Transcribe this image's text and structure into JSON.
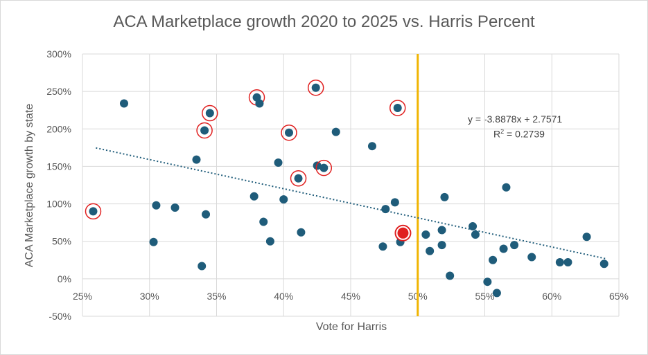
{
  "chart_data": {
    "type": "scatter",
    "title": "ACA Marketplace growth 2020 to 2025 vs. Harris Percent",
    "xlabel": "Vote for Harris",
    "ylabel": "ACA Marketplace growth by state",
    "xlim": [
      0.25,
      0.65
    ],
    "ylim": [
      -0.5,
      3.0
    ],
    "xticks": [
      "25%",
      "30%",
      "35%",
      "40%",
      "45%",
      "50%",
      "55%",
      "60%",
      "65%"
    ],
    "yticks": [
      "-50%",
      "0%",
      "50%",
      "100%",
      "150%",
      "200%",
      "250%",
      "300%"
    ],
    "grid": true,
    "point_color": "#1f5c7a",
    "circle_color": "#e02020",
    "vline": {
      "x": 0.5,
      "color": "#f0b400"
    },
    "trendline": {
      "slope": -3.8878,
      "intercept": 2.7571,
      "x_range": [
        0.26,
        0.64
      ],
      "color": "#1f5c7a",
      "equation": "y = -3.8878x + 2.7571",
      "r2_prefix": "R",
      "r2_suffix": " = 0.2739"
    },
    "points": [
      {
        "x": 0.258,
        "y": 0.9,
        "circled": true
      },
      {
        "x": 0.281,
        "y": 2.34
      },
      {
        "x": 0.303,
        "y": 0.49
      },
      {
        "x": 0.305,
        "y": 0.98
      },
      {
        "x": 0.319,
        "y": 0.95
      },
      {
        "x": 0.335,
        "y": 1.59
      },
      {
        "x": 0.339,
        "y": 0.17
      },
      {
        "x": 0.341,
        "y": 1.98,
        "circled": true
      },
      {
        "x": 0.342,
        "y": 0.86
      },
      {
        "x": 0.345,
        "y": 2.21,
        "circled": true
      },
      {
        "x": 0.378,
        "y": 1.1
      },
      {
        "x": 0.38,
        "y": 2.42,
        "circled": true
      },
      {
        "x": 0.382,
        "y": 2.34
      },
      {
        "x": 0.385,
        "y": 0.76
      },
      {
        "x": 0.39,
        "y": 0.5
      },
      {
        "x": 0.396,
        "y": 1.55
      },
      {
        "x": 0.4,
        "y": 1.06
      },
      {
        "x": 0.404,
        "y": 1.95,
        "circled": true
      },
      {
        "x": 0.411,
        "y": 1.34,
        "circled": true
      },
      {
        "x": 0.413,
        "y": 0.62
      },
      {
        "x": 0.424,
        "y": 2.55,
        "circled": true
      },
      {
        "x": 0.425,
        "y": 1.51
      },
      {
        "x": 0.43,
        "y": 1.48,
        "circled": true
      },
      {
        "x": 0.439,
        "y": 1.96
      },
      {
        "x": 0.466,
        "y": 1.77
      },
      {
        "x": 0.474,
        "y": 0.43
      },
      {
        "x": 0.476,
        "y": 0.93
      },
      {
        "x": 0.483,
        "y": 1.02
      },
      {
        "x": 0.485,
        "y": 2.28,
        "circled": true
      },
      {
        "x": 0.487,
        "y": 0.49
      },
      {
        "x": 0.489,
        "y": 0.61,
        "circled": true,
        "highlight": true
      },
      {
        "x": 0.506,
        "y": 0.59
      },
      {
        "x": 0.509,
        "y": 0.37
      },
      {
        "x": 0.518,
        "y": 0.45
      },
      {
        "x": 0.518,
        "y": 0.65
      },
      {
        "x": 0.52,
        "y": 1.09
      },
      {
        "x": 0.524,
        "y": 0.04
      },
      {
        "x": 0.541,
        "y": 0.7
      },
      {
        "x": 0.543,
        "y": 0.59
      },
      {
        "x": 0.552,
        "y": -0.04
      },
      {
        "x": 0.556,
        "y": 0.25
      },
      {
        "x": 0.559,
        "y": -0.19
      },
      {
        "x": 0.564,
        "y": 0.4
      },
      {
        "x": 0.566,
        "y": 1.22
      },
      {
        "x": 0.572,
        "y": 0.45
      },
      {
        "x": 0.585,
        "y": 0.29
      },
      {
        "x": 0.606,
        "y": 0.22
      },
      {
        "x": 0.612,
        "y": 0.22
      },
      {
        "x": 0.626,
        "y": 0.56
      },
      {
        "x": 0.639,
        "y": 0.2
      }
    ]
  }
}
